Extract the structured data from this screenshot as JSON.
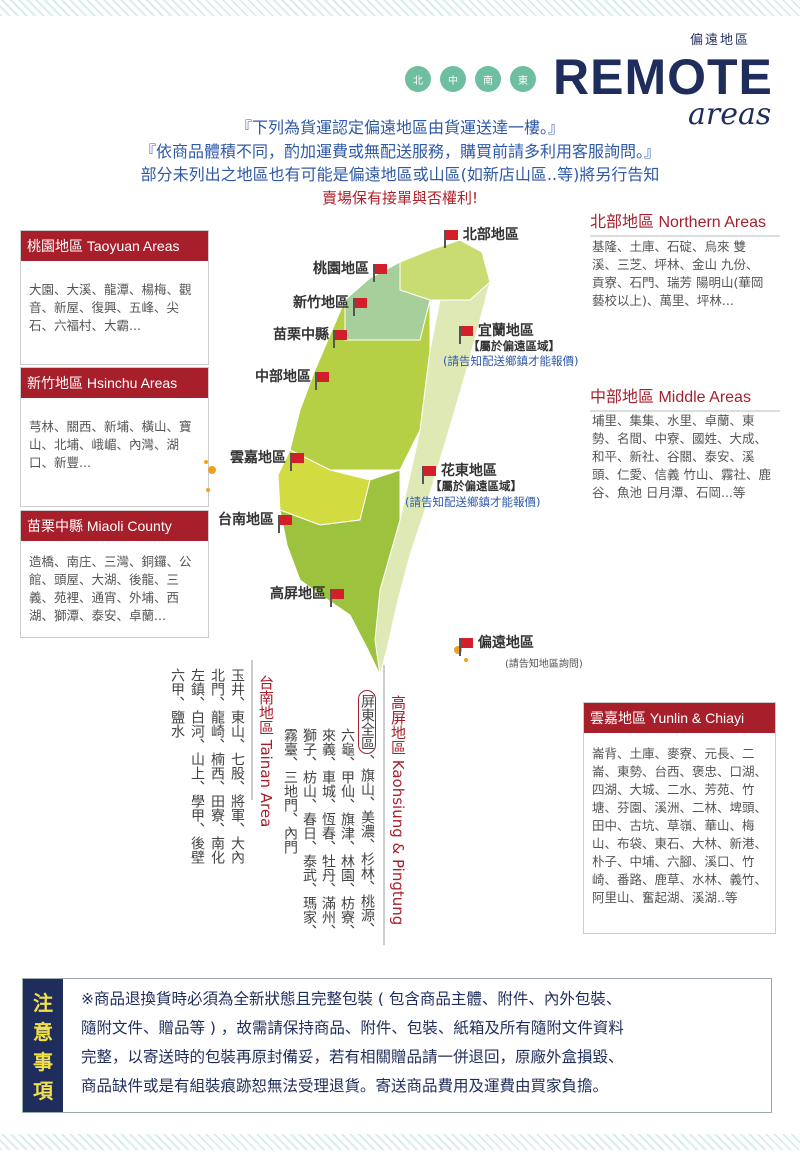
{
  "header": {
    "subtitle": "偏遠地區",
    "title": "REMOTE",
    "script": "areas",
    "circles": [
      "北",
      "中",
      "南",
      "東"
    ],
    "brand_color": "#1f2d5c",
    "accent_color": "#a81f2c"
  },
  "intro": [
    "『下列為貨運認定偏遠地區由貨運送達一樓。』",
    "『依商品體積不同，酌加運費或無配送服務，購買前請多利用客服詢問。』",
    "部分未列出之地區也有可能是偏遠地區或山區(如新店山區..等)將另行告知",
    "賣場保有接單與否權利!"
  ],
  "left_boxes": [
    {
      "title": "桃園地區 Taoyuan Areas",
      "body": "大園、大溪、龍潭、楊梅、觀音、新屋、復興、五峰、尖石、六福村、大霸..."
    },
    {
      "title": "新竹地區 Hsinchu Areas",
      "body": "芎林、關西、新埔、橫山、寶山、北埔、峨嵋、內灣、湖口、新豐..."
    },
    {
      "title": "苗栗中縣 Miaoli County",
      "body": "造橋、南庄、三灣、銅鑼、公館、頭屋、大湖、後龍、三義、苑裡、通宵、外埔、西湖、獅潭、泰安、卓蘭..."
    }
  ],
  "right": {
    "north": {
      "title": "北部地區 Northern Areas",
      "body": "基隆、土庫、石碇、烏來 雙溪、三芝、坪林、金山 九份、貢寮、石門、瑞芳 陽明山(華岡藝校以上)、萬里、坪林..."
    },
    "middle": {
      "title": "中部地區 Middle Areas",
      "body": "埔里、集集、水里、卓蘭、東勢、名間、中寮、國姓、大成、和平、新社、谷關、泰安、溪頭、仁愛、信義 竹山、霧社、鹿谷、魚池 日月潭、石岡...等"
    },
    "yunlin": {
      "title": "雲嘉地區 Yunlin & Chiayi",
      "body": "崙背、土庫、麥寮、元長、二崙、東勢、台西、褒忠、口湖、四湖、大城、二水、芳苑、竹塘、芬園、溪洲、二林、埤頭、田中、古坑、草嶺、華山、梅山、布袋、東石、大林、新港、朴子、中埔、六腳、溪口、竹崎、番路、鹿草、水林、義竹、阿里山、奮起湖、溪湖..等"
    }
  },
  "map": {
    "north": "北部地區",
    "taoyuan": "桃園地區",
    "hsinchu": "新竹地區",
    "miaoli": "苗栗中縣",
    "yilan": "宜蘭地區",
    "yilan_note": "【屬於偏遠區域】",
    "yilan_ask": "(請告知配送鄉鎮才能報價)",
    "middle": "中部地區",
    "yunjia": "雲嘉地區",
    "huadong": "花東地區",
    "huadong_note": "【屬於偏遠區域】",
    "huadong_ask": "(請告知配送鄉鎮才能報價)",
    "tainan": "台南地區",
    "gaoping": "高屏地區",
    "remote": "偏遠地區",
    "remote_ask": "(請告知地區詢問)"
  },
  "kaohsiung": {
    "title": "高屏地區 Kaohsiung & Pingtung",
    "circled": "屏東全區",
    "cols": [
      "、旗山、美濃、杉林、桃源、",
      "六龜、甲仙、旗津、林園、枋寮、",
      "來義、車城、恆春、牡丹、滿州、",
      "獅子、枋山、春日、泰武、瑪家、",
      "霧臺、三地門、內門"
    ]
  },
  "tainan": {
    "title": "台南地區 Tainan Area",
    "cols": [
      "玉井、東山、七股、將軍、大內",
      "北門、龍崎、楠西、田寮、南化",
      "左鎮、白河、山上、學甲、後壁",
      "六甲、鹽水"
    ]
  },
  "notice": {
    "label": [
      "注",
      "意",
      "事",
      "項"
    ],
    "lines": [
      "※商品退換貨時必須為全新狀態且完整包裝 ( 包含商品主體、附件、內外包裝、",
      "隨附文件、贈品等 ) ，故需請保持商品、附件、包裝、紙箱及所有隨附文件資料",
      "完整，以寄送時的包裝再原封備妥，若有相關贈品請一併退回，原廠外盒損毀、",
      "商品缺件或是有組裝痕跡恕無法受理退貨。寄送商品費用及運費由買家負擔。"
    ]
  }
}
